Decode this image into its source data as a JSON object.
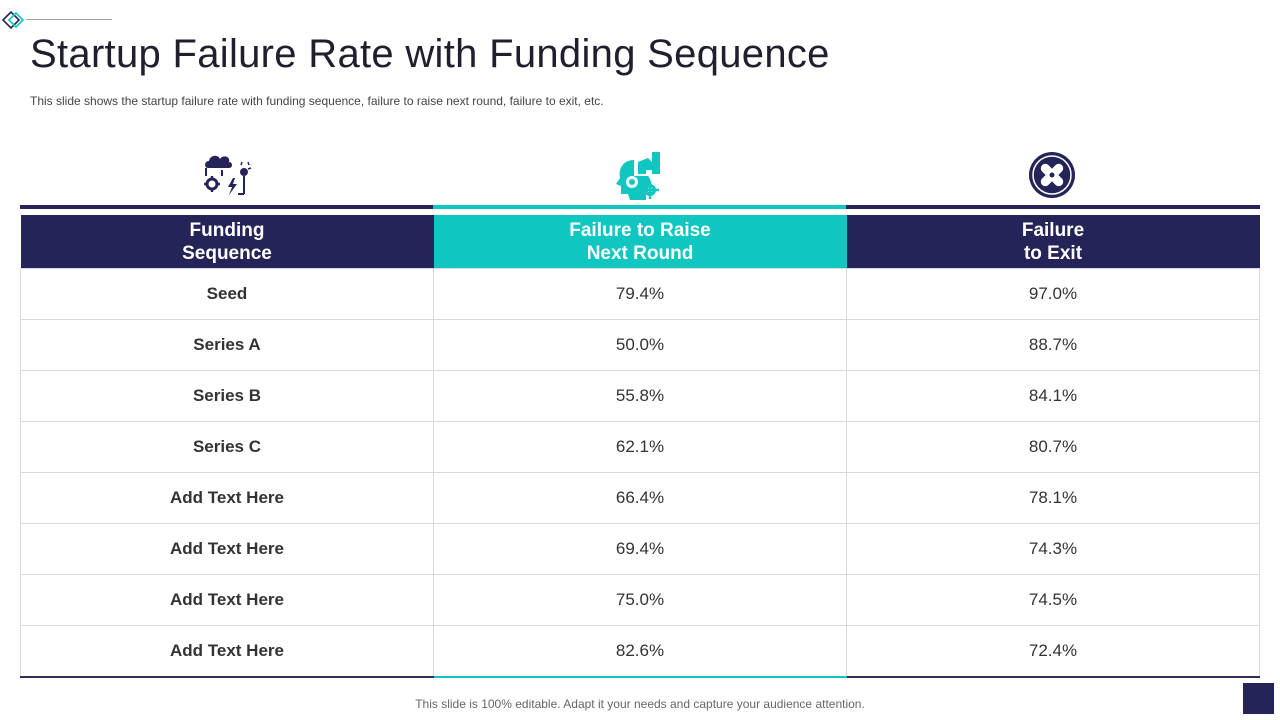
{
  "slide": {
    "title": "Startup Failure Rate with Funding Sequence",
    "subtitle": "This slide shows the startup failure rate with funding sequence, failure to raise next round, failure to  exit,  etc.",
    "footer": "This slide is 100% editable. Adapt it your needs and capture your audience attention."
  },
  "colors": {
    "navy": "#252458",
    "teal": "#10c6c1"
  },
  "icons": {
    "col1": "cloud-gear-idea-icon",
    "col2": "head-gears-hand-icon",
    "col3": "cross-circle-icon"
  },
  "table": {
    "headers": [
      "Funding\nSequence",
      "Failure to Raise\nNext Round",
      "Failure\nto Exit"
    ],
    "rows": [
      [
        "Seed",
        "79.4%",
        "97.0%"
      ],
      [
        "Series A",
        "50.0%",
        "88.7%"
      ],
      [
        "Series B",
        "55.8%",
        "84.1%"
      ],
      [
        "Series C",
        "62.1%",
        "80.7%"
      ],
      [
        "Add  Text Here",
        "66.4%",
        "78.1%"
      ],
      [
        "Add  Text Here",
        "69.4%",
        "74.3%"
      ],
      [
        "Add  Text Here",
        "75.0%",
        "74.5%"
      ],
      [
        "Add  Text Here",
        "82.6%",
        "72.4%"
      ]
    ]
  }
}
